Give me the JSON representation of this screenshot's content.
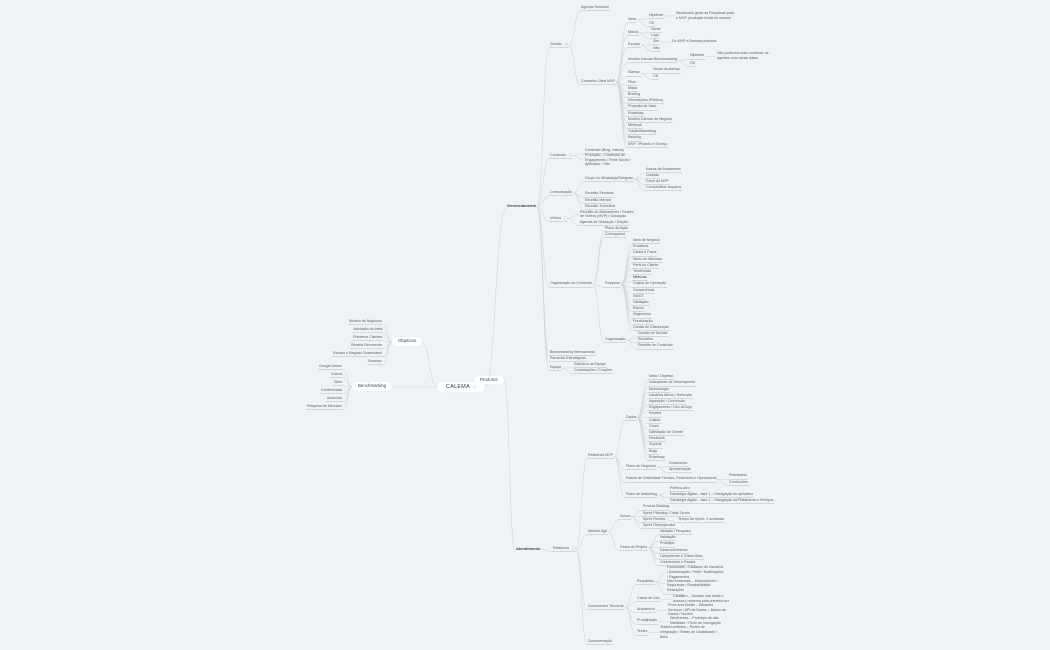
{
  "colors": {
    "background": "#eff3f6",
    "connector": "#cfd6dc",
    "node_box": "#ffffff",
    "text": "#58626b"
  },
  "map": {
    "root": {
      "label": "CALEMA",
      "note": true,
      "boxed": true
    },
    "left": [
      {
        "label": "Objetivos",
        "boxed": true,
        "children": [
          {
            "label": "Modelo de Negócios"
          },
          {
            "label": "Validação da Ideia"
          },
          {
            "label": "Primeiros Clientes"
          },
          {
            "label": "Receita Recorrente"
          },
          {
            "label": "Escalar o Negócio Sustentável"
          },
          {
            "label": "Sucesso"
          }
        ]
      },
      {
        "label": "Benchmarking",
        "boxed": true,
        "children": [
          {
            "label": "Google Avisos"
          },
          {
            "label": "Vídeos"
          },
          {
            "label": "Sites"
          },
          {
            "label": "Conferências"
          },
          {
            "label": "Anúncios"
          },
          {
            "label": "Pesquisa de Mercado"
          }
        ]
      }
    ],
    "right": [
      {
        "label": "Gerenciamento",
        "main": true,
        "children": [
          {
            "label": "Gestão",
            "note": true,
            "children": [
              {
                "label": "Agenda Semanal"
              },
              {
                "label": "Conceitos Úteis MVP",
                "children": [
                  {
                    "label": "Ideia",
                    "children": [
                      {
                        "label": "Hipótese",
                        "children": [
                          {
                            "label": "Necessário gerar as Pesquisas para o MVP, produção inicial de nuvens",
                            "wrap": true
                          }
                        ]
                      },
                      {
                        "label": "OK"
                      }
                    ]
                  },
                  {
                    "label": "Marca",
                    "children": [
                      {
                        "label": "Nome"
                      },
                      {
                        "label": "Logo"
                      }
                    ]
                  },
                  {
                    "label": "Escopo",
                    "children": [
                      {
                        "label": "Sim",
                        "children": [
                          {
                            "label": "Do MVP e Demais produtos",
                            "wrap": true
                          }
                        ]
                      },
                      {
                        "label": "Não"
                      }
                    ]
                  },
                  {
                    "label": "Modelo Canvas Benchmarking",
                    "children": [
                      {
                        "label": "Hipótese",
                        "children": [
                          {
                            "label": "Não podemos mais conhecer os agentes com várias datas",
                            "wrap": true
                          }
                        ]
                      },
                      {
                        "label": "OK"
                      }
                    ]
                  },
                  {
                    "label": "Startup",
                    "children": [
                      {
                        "label": "Nome da startup"
                      },
                      {
                        "label": "OK"
                      }
                    ]
                  },
                  {
                    "label": "Pitch"
                  },
                  {
                    "label": "Mapa"
                  },
                  {
                    "label": "Briefing"
                  },
                  {
                    "label": "Informações (Público)"
                  },
                  {
                    "label": "Proposta de Valor"
                  },
                  {
                    "label": "Roadmap"
                  },
                  {
                    "label": "Modelo Canvas de Negócio"
                  },
                  {
                    "label": "Métricas"
                  },
                  {
                    "label": "Tração/Marketing"
                  },
                  {
                    "label": "Backlog"
                  },
                  {
                    "label": "MVP / Produto e Serviço"
                  }
                ]
              }
            ]
          },
          {
            "label": "Conteúdo",
            "note": true,
            "children": [
              {
                "label": "Conteúdo (Blog, vídeos)"
              },
              {
                "label": "Produção – Conteúdo de Engajamento / Rede Social / Aplicativo / Site",
                "wrap": true
              }
            ]
          },
          {
            "label": "Comunicação",
            "children": [
              {
                "label": "Grupo no WhatsApp/Telegram",
                "children": [
                  {
                    "label": "Avisos de Andamento"
                  },
                  {
                    "label": "Dúvidas"
                  },
                  {
                    "label": "Fotos do MVP"
                  },
                  {
                    "label": "Compartilhar arquivos"
                  }
                ]
              },
              {
                "label": "Reunião Semanal"
              },
              {
                "label": "Reunião Mensal"
              },
              {
                "label": "Reunião Trimestral"
              }
            ]
          },
          {
            "label": "Vídeos",
            "note": true,
            "children": [
              {
                "label": "Reunião de Alinhamento / Roteiro de Vídeos (MVP) / Gravação",
                "wrap": true
              },
              {
                "label": "Agenda de Gravação / Edição"
              }
            ]
          },
          {
            "label": "Organização do Conteúdo",
            "children": [
              {
                "label": "Plano de Ação"
              },
              {
                "label": "Cronograma"
              },
              {
                "label": "Pesquisa",
                "children": [
                  {
                    "label": "Ideia de Negócio"
                  },
                  {
                    "label": "Problema"
                  },
                  {
                    "label": "Dados e Fatos"
                  },
                  {
                    "label": "Nicho de Mercado"
                  },
                  {
                    "label": "Perfil do Cliente"
                  },
                  {
                    "label": "Tendências"
                  },
                  {
                    "label": "Métricas",
                    "hl": true
                  },
                  {
                    "label": "Custos de Operação"
                  },
                  {
                    "label": "Concorrência"
                  },
                  {
                    "label": "SWOT"
                  },
                  {
                    "label": "Validação"
                  },
                  {
                    "label": "Riscos"
                  },
                  {
                    "label": "Segmentos"
                  },
                  {
                    "label": "Precificação"
                  },
                  {
                    "label": "Canais de Distribuição"
                  }
                ]
              },
              {
                "label": "Organização",
                "children": [
                  {
                    "label": "Gestão de Tarefas"
                  },
                  {
                    "label": "Reuniões"
                  },
                  {
                    "label": "Revisão de Conteúdo"
                  }
                ]
              }
            ]
          },
          {
            "label": "Benchmarking Internacional"
          },
          {
            "label": "Parcerias Estratégicas"
          },
          {
            "label": "Equipe",
            "children": [
              {
                "label": "Estrutura da Equipe"
              },
              {
                "label": "Contratações / Funções"
              }
            ]
          }
        ]
      },
      {
        "label": "Produtos",
        "boxed": true,
        "children": [
          {
            "label": "Atendimento",
            "main": true,
            "children": [
              {
                "label": "Relatórios",
                "note": true,
                "children": [
                  {
                    "label": "Relatórios MVP",
                    "children": [
                      {
                        "label": "Dados",
                        "children": [
                          {
                            "label": "Meta / Objetivo"
                          },
                          {
                            "label": "Indicadores de Desempenho"
                          },
                          {
                            "label": "Metodologia"
                          },
                          {
                            "label": "Usuários Ativos / Retenção"
                          },
                          {
                            "label": "Aquisição / Conversão"
                          },
                          {
                            "label": "Engajamento / Uso do App"
                          },
                          {
                            "label": "Receita"
                          },
                          {
                            "label": "Custos"
                          },
                          {
                            "label": "Churn"
                          },
                          {
                            "label": "Satisfação do Cliente"
                          },
                          {
                            "label": "Feedback"
                          },
                          {
                            "label": "Suporte"
                          },
                          {
                            "label": "Bugs"
                          },
                          {
                            "label": "Roadmap"
                          }
                        ]
                      },
                      {
                        "label": "Plano de Negócios",
                        "children": [
                          {
                            "label": "Documento"
                          },
                          {
                            "label": "Apresentação"
                          }
                        ]
                      },
                      {
                        "label": "Estudo de Viabilidade Técnica, Financeira e Operacional",
                        "children": [
                          {
                            "label": "Resultados"
                          },
                          {
                            "label": "Conclusões"
                          }
                        ]
                      },
                      {
                        "label": "Plano de Marketing",
                        "children": [
                          {
                            "label": "Público-alvo"
                          },
                          {
                            "label": "Estratégia digital – fase 1 – Divulgação do aplicativo"
                          },
                          {
                            "label": "Estratégia digital – fase 2 – Divulgação da Plataforma e Serviços"
                          }
                        ]
                      }
                    ]
                  },
                  {
                    "label": "Método Ágil",
                    "children": [
                      {
                        "label": "Scrum",
                        "children": [
                          {
                            "label": "Product Backlog"
                          },
                          {
                            "label": "Sprint Planning / Daily Scrum"
                          },
                          {
                            "label": "Sprint Review",
                            "children": [
                              {
                                "label": "Tempo da Sprint: 2 semanas"
                              }
                            ]
                          },
                          {
                            "label": "Sprint Retrospective"
                          }
                        ]
                      },
                      {
                        "label": "Fases do Projeto",
                        "children": [
                          {
                            "label": "Ideação / Pesquisa"
                          },
                          {
                            "label": "Validação"
                          },
                          {
                            "label": "Protótipo"
                          },
                          {
                            "label": "Desenvolvimento"
                          },
                          {
                            "label": "Lançamento e Testes Beta"
                          },
                          {
                            "label": "Crescimento e Escala"
                          }
                        ]
                      }
                    ]
                  },
                  {
                    "label": "Documentos Técnicos",
                    "children": [
                      {
                        "label": "Requisitos",
                        "children": [
                          {
                            "label": "Funcionais – Cadastro de Usuários / Autenticação / Perfil / Notificações / Pagamentos",
                            "wrap": true
                          },
                          {
                            "label": "Não funcionais – Desempenho / Segurança / Escalabilidade",
                            "wrap": true
                          },
                          {
                            "label": "Restrições"
                          }
                        ]
                      },
                      {
                        "label": "Casos de Uso",
                        "children": [
                          {
                            "label": "Cadastro – Usuário cria conta e acessa o sistema pela primeira vez",
                            "wrap": true
                          }
                        ]
                      },
                      {
                        "label": "Arquitetura",
                        "children": [
                          {
                            "label": "Front-end Mobile – Backend Serviços / API de Dados – Banco de Dados / Nuvem",
                            "wrap": true
                          }
                        ]
                      },
                      {
                        "label": "Prototipação",
                        "children": [
                          {
                            "label": "Wireframes – Protótipo de alta fidelidade / Fluxo de navegação",
                            "wrap": true
                          }
                        ]
                      },
                      {
                        "label": "Testes",
                        "children": [
                          {
                            "label": "Testes Unitários – Testes de Integração / Testes de Usabilidade / Beta",
                            "wrap": true
                          }
                        ]
                      }
                    ]
                  },
                  {
                    "label": "Documentação"
                  }
                ]
              }
            ]
          }
        ]
      }
    ]
  }
}
